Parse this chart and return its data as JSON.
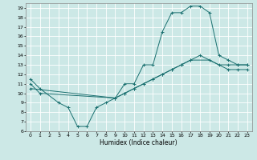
{
  "xlabel": "Humidex (Indice chaleur)",
  "bg_color": "#cce8e6",
  "grid_color": "#ffffff",
  "line_color": "#1a7070",
  "ylim": [
    6,
    19.5
  ],
  "xlim": [
    -0.5,
    23.5
  ],
  "yticks": [
    6,
    7,
    8,
    9,
    10,
    11,
    12,
    13,
    14,
    15,
    16,
    17,
    18,
    19
  ],
  "xticks": [
    0,
    1,
    2,
    3,
    4,
    5,
    6,
    7,
    8,
    9,
    10,
    11,
    12,
    13,
    14,
    15,
    16,
    17,
    18,
    19,
    20,
    21,
    22,
    23
  ],
  "peak_x": [
    0,
    1,
    3,
    4,
    5,
    6,
    7,
    8,
    9,
    10,
    11,
    12,
    13,
    14,
    15,
    16,
    17,
    18,
    19,
    20,
    21,
    22,
    23
  ],
  "peak_y": [
    11.5,
    10.5,
    9.0,
    8.5,
    6.5,
    6.5,
    8.5,
    9.0,
    9.5,
    11.0,
    11.0,
    13.0,
    13.0,
    16.5,
    18.5,
    18.5,
    19.2,
    19.2,
    18.5,
    14.0,
    13.5,
    13.0,
    13.0
  ],
  "line1_x": [
    0,
    1,
    9,
    10,
    11,
    12,
    13,
    14,
    15,
    16,
    17,
    19,
    20,
    21,
    22,
    23
  ],
  "line1_y": [
    11.0,
    10.0,
    9.5,
    10.0,
    10.5,
    11.0,
    11.5,
    12.0,
    12.5,
    13.0,
    13.5,
    13.5,
    13.0,
    13.0,
    13.0,
    13.0
  ],
  "line2_x": [
    0,
    9,
    10,
    11,
    12,
    13,
    14,
    15,
    16,
    17,
    18,
    21,
    22,
    23
  ],
  "line2_y": [
    10.5,
    9.5,
    10.0,
    10.5,
    11.0,
    11.5,
    12.0,
    12.5,
    13.0,
    13.5,
    14.0,
    12.5,
    12.5,
    12.5
  ]
}
